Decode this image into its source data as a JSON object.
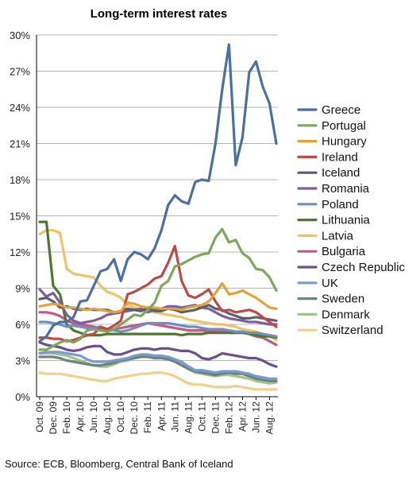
{
  "source": "Source: ECB, Bloomberg, Central Bank of Iceland",
  "chart_data": {
    "type": "line",
    "title": "Long-term interest rates",
    "xlabel": "",
    "ylabel": "",
    "ylim": [
      0,
      30
    ],
    "y_ticks": [
      0,
      3,
      6,
      9,
      12,
      15,
      18,
      21,
      24,
      27,
      30
    ],
    "y_tick_labels": [
      "0%",
      "3%",
      "6%",
      "9%",
      "12%",
      "15%",
      "18%",
      "21%",
      "24%",
      "27%",
      "30%"
    ],
    "x_tick_labels": [
      "Oct. 09",
      "Dec. 09",
      "Feb. 10",
      "Apr. 10",
      "Jun. 10",
      "Aug. 10",
      "Oct. 10",
      "Dec. 10",
      "Feb. 11",
      "Apr. 11",
      "Jun. 11",
      "Aug. 11",
      "Oct. 11",
      "Dec. 11",
      "Feb. 12",
      "Apr. 12",
      "Jun. 12",
      "Aug. 12"
    ],
    "x_step": "month",
    "grid": true,
    "legend_position": "right",
    "series": [
      {
        "name": "Greece",
        "color": "#4a6fa5",
        "values": [
          4.6,
          5.0,
          5.9,
          6.2,
          6.2,
          6.6,
          7.9,
          8.0,
          9.2,
          10.4,
          10.6,
          11.4,
          9.6,
          11.4,
          12.0,
          11.8,
          11.4,
          12.3,
          13.8,
          15.9,
          16.7,
          16.2,
          16.0,
          17.8,
          18.0,
          17.9,
          21.0,
          25.5,
          29.2,
          19.2,
          21.5,
          26.9,
          27.8,
          25.7,
          24.3,
          21.0
        ]
      },
      {
        "name": "Portugal",
        "color": "#7fa75b",
        "values": [
          3.9,
          3.9,
          4.2,
          4.5,
          4.7,
          4.5,
          4.8,
          5.5,
          5.6,
          5.5,
          5.4,
          5.6,
          6.0,
          6.4,
          6.8,
          6.7,
          7.2,
          7.8,
          9.2,
          9.6,
          10.8,
          11.0,
          11.3,
          11.6,
          11.8,
          11.9,
          13.2,
          13.9,
          12.8,
          13.0,
          11.9,
          11.5,
          10.6,
          10.5,
          9.9,
          8.8
        ]
      },
      {
        "name": "Hungary",
        "color": "#e3a33b",
        "values": [
          7.5,
          7.6,
          7.7,
          7.6,
          7.4,
          7.4,
          7.3,
          7.2,
          7.3,
          7.2,
          7.1,
          7.0,
          7.1,
          7.8,
          7.7,
          7.5,
          7.4,
          7.4,
          7.3,
          7.3,
          7.3,
          7.2,
          7.4,
          7.5,
          7.6,
          7.9,
          8.6,
          9.4,
          8.5,
          8.6,
          8.8,
          8.5,
          8.2,
          7.8,
          7.4,
          7.3
        ]
      },
      {
        "name": "Ireland",
        "color": "#bf4a45",
        "values": [
          4.9,
          4.9,
          4.8,
          4.8,
          4.6,
          4.7,
          4.9,
          5.1,
          5.2,
          5.8,
          5.6,
          5.9,
          6.3,
          8.5,
          8.7,
          9.0,
          9.3,
          9.8,
          10.0,
          11.1,
          12.5,
          9.6,
          8.4,
          8.2,
          8.5,
          8.9,
          7.9,
          7.1,
          7.2,
          7.0,
          7.1,
          7.2,
          7.0,
          6.6,
          6.2,
          5.8
        ]
      },
      {
        "name": "Iceland",
        "color": "#5a5f6c",
        "values": [
          8.1,
          8.2,
          7.9,
          7.4,
          7.5,
          7.3,
          7.2,
          7.3,
          7.2,
          7.2,
          7.2,
          7.0,
          7.1,
          7.3,
          7.2,
          7.1,
          7.4,
          7.1,
          7.1,
          7.3,
          7.2,
          7.0,
          7.1,
          7.2,
          7.4,
          7.6,
          7.3,
          7.2,
          6.9,
          6.7,
          6.5,
          6.5,
          6.6,
          6.5,
          6.4,
          6.3
        ]
      },
      {
        "name": "Romania",
        "color": "#7d5f9b",
        "values": [
          8.9,
          8.3,
          8.6,
          7.8,
          6.8,
          6.3,
          6.1,
          6.2,
          6.3,
          6.5,
          6.8,
          6.9,
          7.0,
          7.1,
          7.2,
          7.3,
          7.0,
          7.2,
          7.3,
          7.5,
          7.5,
          7.4,
          7.5,
          7.6,
          7.4,
          7.3,
          7.0,
          6.7,
          6.5,
          6.4,
          6.3,
          6.2,
          6.2,
          6.1,
          6.0,
          6.0
        ]
      },
      {
        "name": "Poland",
        "color": "#6f8ec1",
        "values": [
          6.2,
          6.2,
          6.1,
          6.0,
          5.8,
          5.9,
          5.8,
          5.7,
          5.7,
          5.8,
          5.6,
          5.5,
          5.4,
          5.5,
          5.7,
          5.9,
          6.1,
          6.1,
          6.1,
          6.1,
          6.0,
          5.9,
          5.8,
          5.8,
          5.7,
          5.6,
          5.6,
          5.6,
          5.5,
          5.4,
          5.4,
          5.3,
          5.3,
          5.2,
          5.1,
          5.0
        ]
      },
      {
        "name": "Lithuania",
        "color": "#4b7a2d",
        "values": [
          14.5,
          14.5,
          9.2,
          8.5,
          6.0,
          5.5,
          5.3,
          5.1,
          5.1,
          5.1,
          5.2,
          5.2,
          5.2,
          5.2,
          5.2,
          5.2,
          5.2,
          5.2,
          5.2,
          5.2,
          5.2,
          5.1,
          5.2,
          5.2,
          5.2,
          5.3,
          5.3,
          5.3,
          5.3,
          5.3,
          5.3,
          5.2,
          5.1,
          5.0,
          5.0,
          4.9
        ]
      },
      {
        "name": "Latvia",
        "color": "#f0c36b",
        "values": [
          13.5,
          13.8,
          13.8,
          13.6,
          10.6,
          10.2,
          10.1,
          10.0,
          9.9,
          9.2,
          8.7,
          8.5,
          8.2,
          7.6,
          7.4,
          7.2,
          7.1,
          7.0,
          6.9,
          6.8,
          6.7,
          6.6,
          6.4,
          6.3,
          6.2,
          6.1,
          6.0,
          6.0,
          5.9,
          5.8,
          5.6,
          5.5,
          5.4,
          5.2,
          5.0,
          4.7
        ]
      },
      {
        "name": "Bulgaria",
        "color": "#c25a83",
        "values": [
          7.0,
          7.0,
          6.9,
          6.7,
          6.3,
          6.1,
          6.0,
          5.9,
          5.8,
          5.7,
          5.6,
          5.6,
          5.7,
          5.8,
          5.9,
          6.0,
          6.1,
          6.0,
          5.9,
          5.8,
          5.7,
          5.6,
          5.5,
          5.5,
          5.5,
          5.4,
          5.4,
          5.4,
          5.3,
          5.3,
          5.4,
          5.2,
          5.0,
          4.9,
          4.6,
          4.3
        ]
      },
      {
        "name": "Czech Republic",
        "color": "#6a4f8d",
        "values": [
          4.5,
          4.3,
          4.2,
          4.1,
          3.9,
          3.8,
          3.9,
          4.1,
          4.2,
          4.2,
          3.7,
          3.5,
          3.5,
          3.7,
          3.9,
          4.0,
          4.0,
          3.9,
          4.0,
          4.0,
          3.9,
          3.8,
          3.8,
          3.6,
          3.2,
          3.1,
          3.3,
          3.6,
          3.5,
          3.4,
          3.3,
          3.2,
          3.2,
          3.0,
          2.7,
          2.5
        ]
      },
      {
        "name": "UK",
        "color": "#7a9ad0",
        "values": [
          3.6,
          3.7,
          3.7,
          3.7,
          3.6,
          3.5,
          3.4,
          3.1,
          2.9,
          2.9,
          2.9,
          3.0,
          3.1,
          3.2,
          3.4,
          3.5,
          3.5,
          3.4,
          3.4,
          3.3,
          3.1,
          2.9,
          2.5,
          2.2,
          2.2,
          2.1,
          2.0,
          2.1,
          2.1,
          2.1,
          2.0,
          1.9,
          1.7,
          1.6,
          1.5,
          1.5
        ]
      },
      {
        "name": "Sweden",
        "color": "#6b8578",
        "values": [
          3.3,
          3.3,
          3.3,
          3.2,
          3.0,
          2.9,
          2.8,
          2.7,
          2.6,
          2.6,
          2.7,
          2.8,
          3.0,
          3.1,
          3.2,
          3.3,
          3.3,
          3.2,
          3.2,
          3.1,
          2.9,
          2.6,
          2.3,
          2.1,
          2.0,
          1.9,
          1.8,
          1.9,
          2.0,
          1.9,
          1.9,
          1.7,
          1.5,
          1.4,
          1.3,
          1.3
        ]
      },
      {
        "name": "Denmark",
        "color": "#a3c488",
        "values": [
          3.6,
          3.6,
          3.6,
          3.5,
          3.4,
          3.2,
          3.0,
          2.8,
          2.6,
          2.5,
          2.5,
          2.7,
          2.9,
          3.0,
          3.2,
          3.4,
          3.4,
          3.2,
          3.3,
          3.2,
          3.0,
          2.7,
          2.3,
          2.0,
          1.9,
          1.8,
          1.7,
          1.8,
          1.8,
          1.7,
          1.6,
          1.5,
          1.3,
          1.2,
          1.1,
          1.2
        ]
      },
      {
        "name": "Switzerland",
        "color": "#f2cf8a",
        "values": [
          2.0,
          1.9,
          1.9,
          1.9,
          1.8,
          1.7,
          1.6,
          1.5,
          1.4,
          1.3,
          1.3,
          1.5,
          1.6,
          1.7,
          1.8,
          1.9,
          1.9,
          2.0,
          2.0,
          1.9,
          1.7,
          1.4,
          1.1,
          1.0,
          1.0,
          0.9,
          0.8,
          0.8,
          0.8,
          0.9,
          0.8,
          0.7,
          0.6,
          0.6,
          0.6,
          0.6
        ]
      }
    ]
  }
}
